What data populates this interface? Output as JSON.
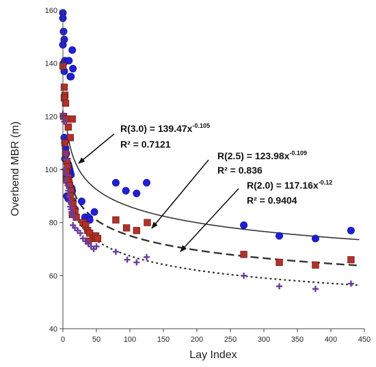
{
  "chart_data": {
    "type": "scatter",
    "title": "",
    "xlabel": "Lay Index",
    "ylabel": "Overbend MBR (m)",
    "xlim": [
      0,
      450
    ],
    "ylim": [
      40,
      160
    ],
    "xticks": [
      0,
      50,
      100,
      150,
      200,
      250,
      300,
      350,
      400,
      450
    ],
    "yticks": [
      40,
      60,
      80,
      100,
      120,
      140,
      160
    ],
    "grid": false,
    "legend": "none",
    "series": [
      {
        "marker": "circle",
        "color": "#1f1fd6",
        "points": [
          [
            0,
            159
          ],
          [
            0,
            157
          ],
          [
            1,
            152
          ],
          [
            2,
            149
          ],
          [
            0,
            147
          ],
          [
            3,
            141
          ],
          [
            1,
            140
          ],
          [
            2,
            137
          ],
          [
            9,
            141
          ],
          [
            14,
            145
          ],
          [
            11,
            135
          ],
          [
            12,
            135
          ],
          [
            15,
            138
          ],
          [
            1,
            120
          ],
          [
            2,
            112
          ],
          [
            3,
            110
          ],
          [
            4,
            108
          ],
          [
            5,
            106
          ],
          [
            3,
            104
          ],
          [
            6,
            103
          ],
          [
            8,
            102
          ],
          [
            9,
            101
          ],
          [
            10,
            100
          ],
          [
            11,
            99
          ],
          [
            12,
            98
          ],
          [
            5,
            97
          ],
          [
            7,
            96
          ],
          [
            9,
            95
          ],
          [
            10,
            94
          ],
          [
            13,
            93
          ],
          [
            14,
            92
          ],
          [
            6,
            90
          ],
          [
            8,
            89
          ],
          [
            15,
            88
          ],
          [
            28,
            88
          ],
          [
            18,
            85
          ],
          [
            33,
            82
          ],
          [
            38,
            82
          ],
          [
            40,
            81
          ],
          [
            47,
            84
          ],
          [
            79,
            95
          ],
          [
            94,
            92
          ],
          [
            110,
            91
          ],
          [
            125,
            95
          ],
          [
            270,
            79
          ],
          [
            323,
            75
          ],
          [
            377,
            74
          ],
          [
            430,
            77
          ]
        ]
      },
      {
        "marker": "square",
        "color": "#b5302a",
        "points": [
          [
            0,
            139
          ],
          [
            2,
            131
          ],
          [
            3,
            128
          ],
          [
            2,
            127
          ],
          [
            4,
            125
          ],
          [
            1,
            120
          ],
          [
            5,
            119
          ],
          [
            14,
            119
          ],
          [
            8,
            116
          ],
          [
            11,
            112
          ],
          [
            3,
            110
          ],
          [
            4,
            106
          ],
          [
            6,
            103
          ],
          [
            7,
            101
          ],
          [
            5,
            99
          ],
          [
            8,
            97
          ],
          [
            6,
            96
          ],
          [
            9,
            95
          ],
          [
            10,
            94
          ],
          [
            12,
            92
          ],
          [
            11,
            90
          ],
          [
            13,
            88
          ],
          [
            15,
            87
          ],
          [
            16,
            85
          ],
          [
            18,
            84
          ],
          [
            14,
            83
          ],
          [
            20,
            82
          ],
          [
            30,
            80
          ],
          [
            34,
            79
          ],
          [
            37,
            77
          ],
          [
            40,
            76
          ],
          [
            45,
            74
          ],
          [
            49,
            75
          ],
          [
            52,
            74
          ],
          [
            38,
            73
          ],
          [
            79,
            81
          ],
          [
            95,
            78
          ],
          [
            110,
            77
          ],
          [
            126,
            80
          ],
          [
            270,
            68
          ],
          [
            323,
            65
          ],
          [
            377,
            64
          ],
          [
            430,
            66
          ]
        ]
      },
      {
        "marker": "plus",
        "color": "#6a3d9a",
        "points": [
          [
            0,
            121
          ],
          [
            1,
            119
          ],
          [
            2,
            118
          ],
          [
            3,
            106
          ],
          [
            5,
            104
          ],
          [
            2,
            100
          ],
          [
            6,
            98
          ],
          [
            4,
            96
          ],
          [
            7,
            94
          ],
          [
            8,
            92
          ],
          [
            9,
            90
          ],
          [
            10,
            88
          ],
          [
            11,
            86
          ],
          [
            12,
            85
          ],
          [
            13,
            84
          ],
          [
            14,
            83
          ],
          [
            16,
            82
          ],
          [
            15,
            79
          ],
          [
            18,
            78
          ],
          [
            22,
            77
          ],
          [
            26,
            76
          ],
          [
            30,
            74
          ],
          [
            34,
            73
          ],
          [
            38,
            72
          ],
          [
            42,
            71
          ],
          [
            46,
            70
          ],
          [
            50,
            71
          ],
          [
            79,
            69
          ],
          [
            96,
            66
          ],
          [
            110,
            65
          ],
          [
            125,
            67
          ],
          [
            270,
            60
          ],
          [
            323,
            56
          ],
          [
            377,
            55
          ],
          [
            430,
            57
          ]
        ]
      }
    ],
    "fits": [
      {
        "name": "R(3.0)",
        "a": 139.47,
        "b": -0.105,
        "style": "solid",
        "x_start": 4.5
      },
      {
        "name": "R(2.5)",
        "a": 123.98,
        "b": -0.109,
        "style": "dashed",
        "x_start": 4.5
      },
      {
        "name": "R(2.0)",
        "a": 117.16,
        "b": -0.12,
        "style": "dotted",
        "x_start": 4.5
      }
    ],
    "annotations": [
      {
        "eq_prefix": "R(3.0) = 139.47x",
        "exponent": "-0.105",
        "r2": "R² = 0.7121"
      },
      {
        "eq_prefix": "R(2.5) = 123.98x",
        "exponent": "-0.109",
        "r2": "R² = 0.836"
      },
      {
        "eq_prefix": "R(2.0) = 117.16x",
        "exponent": "-0.12",
        "r2": "R² = 0.9404"
      }
    ]
  }
}
